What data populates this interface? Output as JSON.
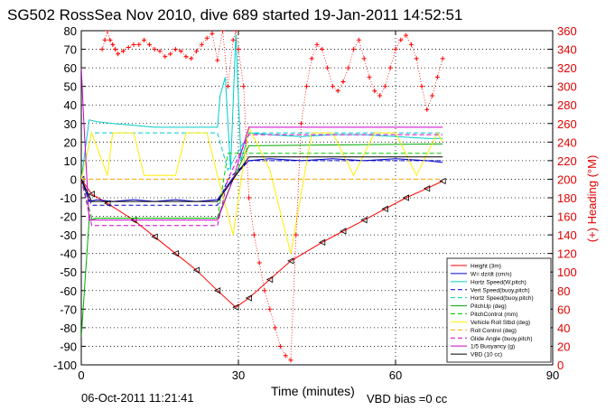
{
  "chart_data": {
    "type": "line",
    "title": "SG502 RossSea Nov 2010, dive 689 started 19-Jan-2011 14:52:51",
    "xlabel": "Time (minutes)",
    "ylabel_right": "(+) Heading (°M)",
    "xlim": [
      0,
      90
    ],
    "ylim": [
      -100,
      80
    ],
    "ylim_right": [
      0,
      360
    ],
    "x_ticks": [
      0,
      30,
      60,
      90
    ],
    "y_ticks": [
      -100,
      -90,
      -80,
      -70,
      -60,
      -50,
      -40,
      -30,
      -20,
      -10,
      0,
      10,
      20,
      30,
      40,
      50,
      60,
      70,
      80
    ],
    "y_right_ticks": [
      0,
      20,
      40,
      60,
      80,
      100,
      120,
      140,
      160,
      180,
      200,
      220,
      240,
      260,
      280,
      300,
      320,
      340,
      360
    ],
    "grid": true,
    "legend_position": "bottom-right",
    "date_stamp": "06-Oct-2011 11:21:41",
    "vbd_bias": "VBD bias =0 cc",
    "series": [
      {
        "name": "Height (3m)",
        "color": "#ff0000",
        "style": "solid",
        "marker": "triangle",
        "x": [
          0,
          2,
          5,
          10,
          14,
          18,
          22,
          26,
          29.5,
          32,
          36,
          40,
          46,
          50,
          54,
          58,
          62,
          66,
          69
        ],
        "y": [
          0,
          -8,
          -13,
          -22,
          -31,
          -40,
          -49,
          -60,
          -69,
          -64,
          -54,
          -44,
          -34,
          -28,
          -22,
          -16,
          -10,
          -5,
          -1
        ]
      },
      {
        "name": "W= dz/dt (cm/s)",
        "color": "#0000cc",
        "style": "solid",
        "x": [
          0,
          1.5,
          3,
          6,
          10,
          14,
          18,
          22,
          26,
          29,
          32,
          36,
          42,
          48,
          54,
          60,
          66,
          69
        ],
        "y": [
          0,
          -12,
          -11,
          -12,
          -11,
          -12,
          -11,
          -12,
          -11,
          1,
          10,
          11,
          10,
          11,
          10,
          11,
          10,
          9
        ]
      },
      {
        "name": "Hortz Speed(W,pitch)",
        "color": "#00cccc",
        "style": "solid",
        "x": [
          0,
          1.5,
          3,
          6,
          10,
          14,
          18,
          22,
          26,
          26.5,
          27.5,
          28.5,
          29.5,
          30.5,
          32,
          36,
          42,
          48,
          54,
          60,
          66,
          69
        ],
        "y": [
          0,
          32,
          31,
          30,
          29,
          28,
          28,
          28,
          28,
          45,
          55,
          5,
          78,
          10,
          25,
          24,
          23,
          24,
          24,
          23,
          22,
          22
        ]
      },
      {
        "name": "Vert Speed(buoy,pitch)",
        "color": "#0000cc",
        "style": "dashed",
        "x": [
          0,
          2,
          26,
          28,
          32,
          69
        ],
        "y": [
          0,
          -14,
          -14,
          0,
          10,
          10
        ]
      },
      {
        "name": "Hortz Speed(buoy,pitch)",
        "color": "#00cccc",
        "style": "dashed",
        "x": [
          0,
          2,
          26,
          28,
          32,
          69
        ],
        "y": [
          0,
          25,
          25,
          5,
          25,
          25
        ]
      },
      {
        "name": "PitchUp (deg)",
        "color": "#00aa00",
        "style": "solid",
        "x": [
          0,
          1.5,
          3,
          26,
          29,
          32,
          69
        ],
        "y": [
          -85,
          -22,
          -21,
          -21,
          0,
          18,
          19
        ]
      },
      {
        "name": "PitchControl (mm)",
        "color": "#00cc00",
        "style": "dashed",
        "x": [
          0,
          2,
          26,
          28,
          69
        ],
        "y": [
          0,
          -21,
          -21,
          14,
          14
        ]
      },
      {
        "name": "Vehicle Roll Stbd (deg)",
        "color": "#ffee00",
        "style": "solid",
        "x": [
          0,
          2,
          5,
          6,
          10,
          12,
          18,
          20,
          24,
          26,
          29,
          32,
          36,
          40,
          44,
          48,
          52,
          56,
          60,
          64,
          68,
          69
        ],
        "y": [
          0,
          25,
          2,
          25,
          25,
          2,
          2,
          25,
          25,
          2,
          -30,
          28,
          5,
          -40,
          25,
          25,
          2,
          25,
          25,
          2,
          25,
          20
        ]
      },
      {
        "name": "Roll Control (deg)",
        "color": "#ffaa00",
        "style": "dashed",
        "x": [
          0,
          69
        ],
        "y": [
          0,
          0
        ]
      },
      {
        "name": "Glide Angle (buoy,pitch)",
        "color": "#cc00cc",
        "style": "dashed",
        "x": [
          0,
          2,
          26,
          28,
          32,
          69
        ],
        "y": [
          0,
          -25,
          -25,
          0,
          24,
          24
        ]
      },
      {
        "name": "1/5 Buoyancy (g)",
        "color": "#cc00cc",
        "style": "solid",
        "x": [
          0,
          0.5,
          1.5,
          3,
          26,
          29,
          32,
          69
        ],
        "y": [
          60,
          30,
          -22,
          -22,
          -22,
          0,
          28,
          28
        ]
      },
      {
        "name": "VBD (10 cc)",
        "color": "#000000",
        "style": "solid",
        "x": [
          0,
          2,
          26,
          29,
          32,
          69
        ],
        "y": [
          0,
          -12,
          -12,
          0,
          12,
          12
        ]
      },
      {
        "name": "Heading",
        "color": "#ff0000",
        "style": "dotted",
        "marker": "plus",
        "axis": "right",
        "x": [
          4,
          4.5,
          5,
          5.5,
          6,
          6.5,
          7,
          8,
          9,
          10,
          11,
          12,
          13,
          14,
          15,
          16,
          17,
          18,
          19,
          20,
          21,
          22,
          23,
          24,
          25,
          26,
          27,
          28,
          29,
          29.5,
          30,
          31,
          32,
          33,
          34,
          35,
          36,
          37,
          38,
          39,
          40,
          41,
          42,
          43,
          44,
          45,
          46,
          47,
          48,
          49,
          50,
          51,
          52,
          53,
          54,
          55,
          56,
          57,
          58,
          59,
          60,
          61,
          62,
          63,
          64,
          65,
          66,
          67,
          68,
          69
        ],
        "y": [
          340,
          350,
          360,
          350,
          345,
          340,
          335,
          338,
          342,
          345,
          345,
          350,
          345,
          340,
          338,
          332,
          335,
          340,
          338,
          332,
          330,
          338,
          345,
          352,
          357,
          328,
          360,
          300,
          350,
          360,
          340,
          300,
          180,
          140,
          110,
          80,
          60,
          40,
          20,
          10,
          5,
          140,
          260,
          300,
          330,
          345,
          340,
          320,
          300,
          295,
          305,
          320,
          340,
          350,
          330,
          310,
          295,
          290,
          300,
          320,
          340,
          350,
          355,
          345,
          330,
          300,
          275,
          290,
          310,
          330
        ]
      }
    ]
  }
}
